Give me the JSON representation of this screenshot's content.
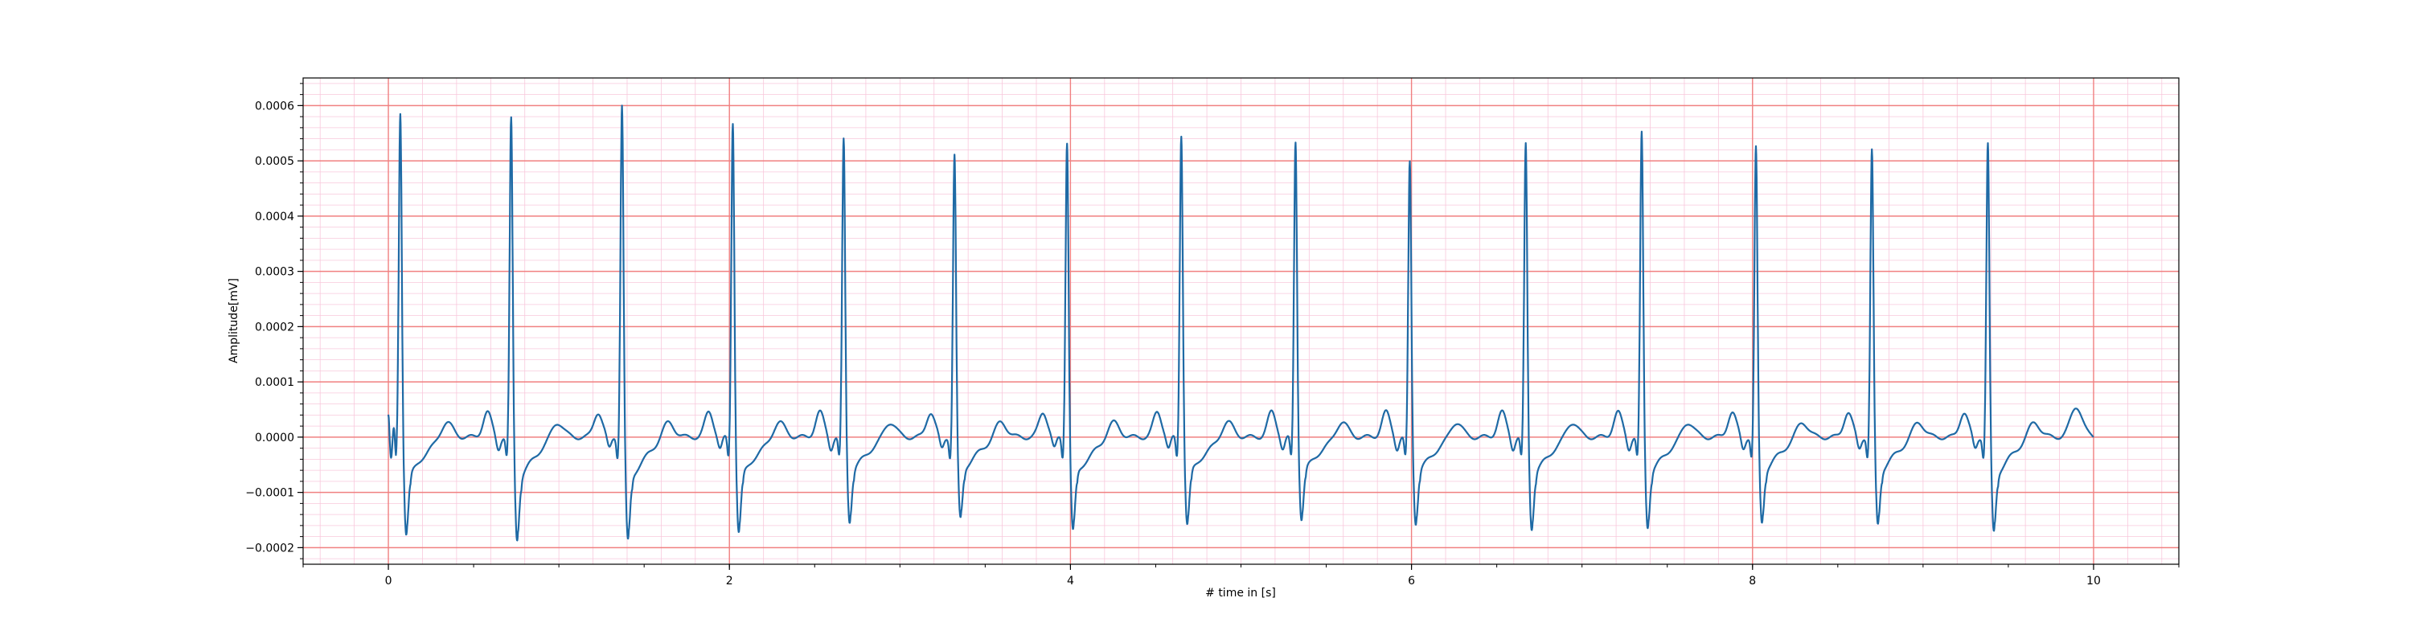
{
  "chart_data": {
    "type": "line",
    "title": "",
    "xlabel": "# time in [s]",
    "ylabel": "Amplitude[mV]",
    "xlim": [
      -0.5,
      10.5
    ],
    "ylim": [
      -0.00023,
      0.00065
    ],
    "x_ticks": [
      0,
      2,
      4,
      6,
      8,
      10
    ],
    "x_tick_labels": [
      "0",
      "2",
      "4",
      "6",
      "8",
      "10"
    ],
    "y_ticks": [
      -0.0002,
      -0.0001,
      0.0,
      0.0001,
      0.0002,
      0.0003,
      0.0004,
      0.0005,
      0.0006
    ],
    "y_tick_labels": [
      "−0.0002",
      "−0.0001",
      "0.0000",
      "0.0001",
      "0.0002",
      "0.0003",
      "0.0004",
      "0.0005",
      "0.0006"
    ],
    "grid": {
      "major": true,
      "minor": true,
      "major_color": "#f08080",
      "minor_color": "#f8c8dc",
      "major_step_x": 2,
      "minor_step_x": 0.2,
      "major_step_y": 0.0001,
      "minor_step_y": 2e-05
    },
    "legend": "none",
    "series": [
      {
        "color": "#1f6aa5",
        "beats": [
          {
            "r_time": 0.07,
            "r_amp": 0.00059,
            "s_amp": -0.000175
          },
          {
            "r_time": 0.72,
            "r_amp": 0.000578,
            "s_amp": -0.000185
          },
          {
            "r_time": 1.37,
            "r_amp": 0.000603,
            "s_amp": -0.000188
          },
          {
            "r_time": 2.02,
            "r_amp": 0.000573,
            "s_amp": -0.000172
          },
          {
            "r_time": 2.67,
            "r_amp": 0.00054,
            "s_amp": -0.000152
          },
          {
            "r_time": 3.32,
            "r_amp": 0.000512,
            "s_amp": -0.000148
          },
          {
            "r_time": 3.98,
            "r_amp": 0.000537,
            "s_amp": -0.00017
          },
          {
            "r_time": 4.65,
            "r_amp": 0.00055,
            "s_amp": -0.000158
          },
          {
            "r_time": 5.32,
            "r_amp": 0.000537,
            "s_amp": -0.000148
          },
          {
            "r_time": 5.99,
            "r_amp": 0.0005,
            "s_amp": -0.000155
          },
          {
            "r_time": 6.67,
            "r_amp": 0.000532,
            "s_amp": -0.000165
          },
          {
            "r_time": 7.35,
            "r_amp": 0.000552,
            "s_amp": -0.000162
          },
          {
            "r_time": 8.02,
            "r_amp": 0.000525,
            "s_amp": -0.000155
          },
          {
            "r_time": 8.7,
            "r_amp": 0.00052,
            "s_amp": -0.000158
          },
          {
            "r_time": 9.38,
            "r_amp": 0.000532,
            "s_amp": -0.000172
          }
        ],
        "t_wave_amp": 3e-05,
        "p_wave_amp": 4.5e-05,
        "end_time": 10.0,
        "end_amp": 5.5e-05
      }
    ]
  }
}
